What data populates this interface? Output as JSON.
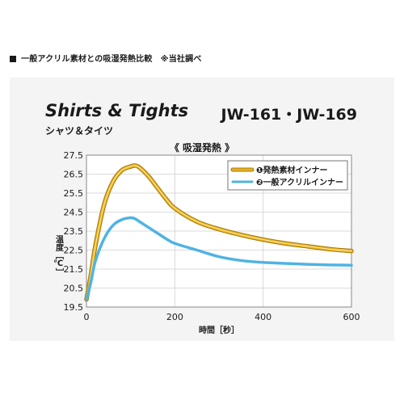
{
  "header": {
    "text": "一般アクリル素材との吸湿発熱比較　※当社調べ"
  },
  "panel": {
    "title_en": "Shirts & Tights",
    "title_jp": "シャツ＆タイツ",
    "model": "JW-161・JW-169",
    "subtitle": "《 吸湿発熱 》"
  },
  "chart_data": {
    "type": "line",
    "xlabel": "時間［秒］",
    "ylabel": "温度［℃］",
    "xlim": [
      0,
      600
    ],
    "ylim": [
      19.5,
      27.5
    ],
    "xticks": [
      0,
      200,
      400,
      600
    ],
    "yticks": [
      19.5,
      20.5,
      21.5,
      22.5,
      23.5,
      24.5,
      25.5,
      26.5,
      27.5
    ],
    "grid": true,
    "legend_position": "top-right",
    "series": [
      {
        "name": "❶発熱素材インナー",
        "color": "#e8b21f",
        "x": [
          0,
          10,
          20,
          40,
          60,
          80,
          100,
          110,
          120,
          140,
          160,
          180,
          200,
          250,
          300,
          350,
          400,
          450,
          500,
          550,
          600
        ],
        "y": [
          19.9,
          21.2,
          22.7,
          24.9,
          26.1,
          26.7,
          26.9,
          26.95,
          26.85,
          26.4,
          25.8,
          25.2,
          24.7,
          24.0,
          23.6,
          23.3,
          23.05,
          22.85,
          22.7,
          22.55,
          22.45
        ]
      },
      {
        "name": "❷一般アクリルインナー",
        "color": "#4fb3e3",
        "x": [
          0,
          10,
          20,
          40,
          60,
          80,
          100,
          110,
          120,
          140,
          160,
          180,
          200,
          250,
          300,
          350,
          400,
          450,
          500,
          550,
          600
        ],
        "y": [
          19.9,
          20.8,
          21.9,
          23.1,
          23.8,
          24.1,
          24.2,
          24.15,
          24.0,
          23.7,
          23.4,
          23.1,
          22.85,
          22.5,
          22.15,
          21.95,
          21.85,
          21.8,
          21.75,
          21.72,
          21.7
        ]
      }
    ]
  }
}
